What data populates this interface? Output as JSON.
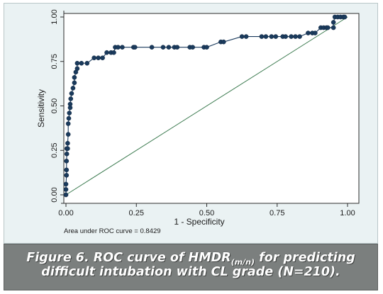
{
  "caption": {
    "line1_prefix": "Figure 6. ROC curve of HMDR",
    "subscript": "(m/n)",
    "line1_suffix": " for predicting",
    "line2": "difficult intubation with CL grade (N=210)."
  },
  "colors": {
    "background": "#eaf2f3",
    "plot_area": "#ffffff",
    "curve": "#1a3a5c",
    "marker": "#1a3a5c",
    "reference_line": "#3b7a4f",
    "caption_bg": "#7b7f7e"
  },
  "chart_data": {
    "type": "line",
    "xlabel": "1 - Specificity",
    "ylabel": "Sensitivity",
    "xlim": [
      0,
      1
    ],
    "ylim": [
      0,
      1
    ],
    "x_ticks": [
      0,
      0.25,
      0.5,
      0.75,
      1
    ],
    "x_tick_labels": [
      "0.00",
      "0.25",
      "0.50",
      "0.75",
      "1.00"
    ],
    "y_ticks": [
      0,
      0.25,
      0.5,
      0.75,
      1
    ],
    "y_tick_labels": [
      "0.00",
      "0.25",
      "0.50",
      "0.75",
      "1.00"
    ],
    "grid": false,
    "annotation": "Area under ROC curve = 0.8429",
    "reference_line": [
      [
        0,
        0
      ],
      [
        1,
        1
      ]
    ],
    "series": [
      {
        "points": [
          [
            0.0,
            0.0
          ],
          [
            0.0,
            0.03
          ],
          [
            0.0,
            0.06
          ],
          [
            0.002,
            0.11
          ],
          [
            0.002,
            0.14
          ],
          [
            0.002,
            0.19
          ],
          [
            0.003,
            0.23
          ],
          [
            0.003,
            0.26
          ],
          [
            0.006,
            0.26
          ],
          [
            0.006,
            0.29
          ],
          [
            0.008,
            0.34
          ],
          [
            0.008,
            0.4
          ],
          [
            0.01,
            0.43
          ],
          [
            0.012,
            0.46
          ],
          [
            0.015,
            0.49
          ],
          [
            0.015,
            0.51
          ],
          [
            0.017,
            0.54
          ],
          [
            0.02,
            0.57
          ],
          [
            0.025,
            0.6
          ],
          [
            0.03,
            0.63
          ],
          [
            0.03,
            0.66
          ],
          [
            0.035,
            0.69
          ],
          [
            0.04,
            0.71
          ],
          [
            0.04,
            0.74
          ],
          [
            0.055,
            0.74
          ],
          [
            0.075,
            0.74
          ],
          [
            0.1,
            0.77
          ],
          [
            0.115,
            0.77
          ],
          [
            0.13,
            0.77
          ],
          [
            0.145,
            0.8
          ],
          [
            0.16,
            0.8
          ],
          [
            0.17,
            0.8
          ],
          [
            0.175,
            0.83
          ],
          [
            0.185,
            0.83
          ],
          [
            0.2,
            0.83
          ],
          [
            0.24,
            0.83
          ],
          [
            0.245,
            0.83
          ],
          [
            0.305,
            0.83
          ],
          [
            0.345,
            0.83
          ],
          [
            0.365,
            0.83
          ],
          [
            0.385,
            0.83
          ],
          [
            0.395,
            0.83
          ],
          [
            0.44,
            0.83
          ],
          [
            0.45,
            0.83
          ],
          [
            0.49,
            0.83
          ],
          [
            0.5,
            0.83
          ],
          [
            0.55,
            0.86
          ],
          [
            0.56,
            0.86
          ],
          [
            0.625,
            0.89
          ],
          [
            0.64,
            0.89
          ],
          [
            0.695,
            0.89
          ],
          [
            0.71,
            0.89
          ],
          [
            0.73,
            0.89
          ],
          [
            0.745,
            0.89
          ],
          [
            0.77,
            0.89
          ],
          [
            0.78,
            0.89
          ],
          [
            0.8,
            0.89
          ],
          [
            0.815,
            0.89
          ],
          [
            0.83,
            0.89
          ],
          [
            0.86,
            0.91
          ],
          [
            0.875,
            0.91
          ],
          [
            0.885,
            0.91
          ],
          [
            0.905,
            0.94
          ],
          [
            0.915,
            0.94
          ],
          [
            0.925,
            0.94
          ],
          [
            0.93,
            0.94
          ],
          [
            0.95,
            0.94
          ],
          [
            0.95,
            0.97
          ],
          [
            0.955,
            1.0
          ],
          [
            0.965,
            1.0
          ],
          [
            0.975,
            1.0
          ],
          [
            0.985,
            1.0
          ],
          [
            0.99,
            1.0
          ]
        ]
      }
    ]
  }
}
